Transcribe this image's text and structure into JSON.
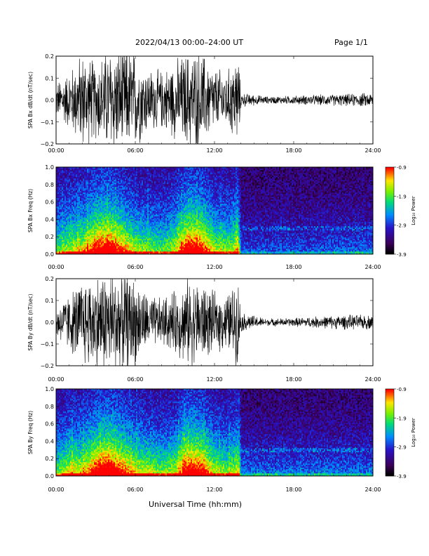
{
  "header": {
    "title": "2022/04/13  00:00–24:00 UT",
    "page": "Page 1/1"
  },
  "xlabel": "Universal Time (hh:mm)",
  "colorbar": {
    "label": "Log₁₀ Power",
    "ticks": [
      -0.9,
      -1.9,
      -2.9,
      -3.9
    ],
    "range": [
      -3.9,
      -0.9
    ]
  },
  "chart_data": [
    {
      "type": "line",
      "ylabel": "SPA Bx dB/dt (nT/sec)",
      "x_ticks": [
        "00:00",
        "06:00",
        "12:00",
        "18:00",
        "24:00"
      ],
      "xlim": [
        0,
        24
      ],
      "ylim": [
        -0.2,
        0.2
      ],
      "y_ticks": [
        "0.2",
        "0.1",
        "0.0",
        "−0.1",
        "−0.2"
      ],
      "envelope": {
        "hours": [
          0,
          1,
          2,
          3,
          4,
          5,
          6,
          7,
          8,
          9,
          10,
          11,
          12,
          13,
          13.8,
          14,
          16,
          18,
          20,
          22,
          24
        ],
        "amplitude": [
          0.07,
          0.12,
          0.2,
          0.16,
          0.22,
          0.22,
          0.2,
          0.13,
          0.12,
          0.16,
          0.2,
          0.2,
          0.13,
          0.12,
          0.2,
          0.03,
          0.015,
          0.018,
          0.022,
          0.025,
          0.03
        ]
      }
    },
    {
      "type": "heatmap",
      "ylabel": "SPA Bx Freq (Hz)",
      "x_ticks": [
        "00:00",
        "06:00",
        "12:00",
        "18:00",
        "24:00"
      ],
      "xlim": [
        0,
        24
      ],
      "ylim": [
        0,
        1
      ],
      "y_ticks": [
        "1.0",
        "0.8",
        "0.6",
        "0.4",
        "0.2",
        "0.0"
      ],
      "zlim": [
        -3.9,
        -0.9
      ],
      "activity": {
        "hours": [
          0,
          1,
          2,
          3,
          4,
          5,
          6,
          7,
          8,
          9,
          10,
          11,
          12,
          13,
          13.8,
          14,
          18,
          24
        ],
        "level": [
          0.45,
          0.55,
          0.6,
          0.8,
          0.85,
          0.7,
          0.55,
          0.5,
          0.45,
          0.55,
          0.85,
          0.8,
          0.55,
          0.5,
          0.6,
          0.25,
          0.25,
          0.3
        ]
      }
    },
    {
      "type": "line",
      "ylabel": "SPA By dB/dt (nT/sec)",
      "x_ticks": [
        "00:00",
        "06:00",
        "12:00",
        "18:00",
        "24:00"
      ],
      "xlim": [
        0,
        24
      ],
      "ylim": [
        -0.2,
        0.2
      ],
      "y_ticks": [
        "0.2",
        "0.1",
        "0.0",
        "−0.1",
        "−0.2"
      ],
      "envelope": {
        "hours": [
          0,
          1,
          2,
          3,
          4,
          5,
          6,
          7,
          8,
          9,
          10,
          11,
          12,
          13,
          13.8,
          14,
          16,
          18,
          20,
          22,
          24
        ],
        "amplitude": [
          0.07,
          0.12,
          0.18,
          0.2,
          0.22,
          0.22,
          0.18,
          0.11,
          0.1,
          0.13,
          0.18,
          0.17,
          0.12,
          0.12,
          0.18,
          0.04,
          0.015,
          0.018,
          0.025,
          0.03,
          0.03
        ]
      }
    },
    {
      "type": "heatmap",
      "ylabel": "SPA By Freq (Hz)",
      "x_ticks": [
        "00:00",
        "06:00",
        "12:00",
        "18:00",
        "24:00"
      ],
      "xlim": [
        0,
        24
      ],
      "ylim": [
        0,
        1
      ],
      "y_ticks": [
        "1.0",
        "0.8",
        "0.6",
        "0.4",
        "0.2",
        "0.0"
      ],
      "zlim": [
        -3.9,
        -0.9
      ],
      "activity": {
        "hours": [
          0,
          1,
          2,
          3,
          4,
          5,
          6,
          7,
          8,
          9,
          10,
          11,
          12,
          13,
          13.8,
          14,
          18,
          24
        ],
        "level": [
          0.45,
          0.6,
          0.6,
          0.8,
          0.9,
          0.75,
          0.6,
          0.55,
          0.5,
          0.55,
          0.85,
          0.8,
          0.55,
          0.5,
          0.6,
          0.3,
          0.3,
          0.3
        ]
      }
    }
  ]
}
